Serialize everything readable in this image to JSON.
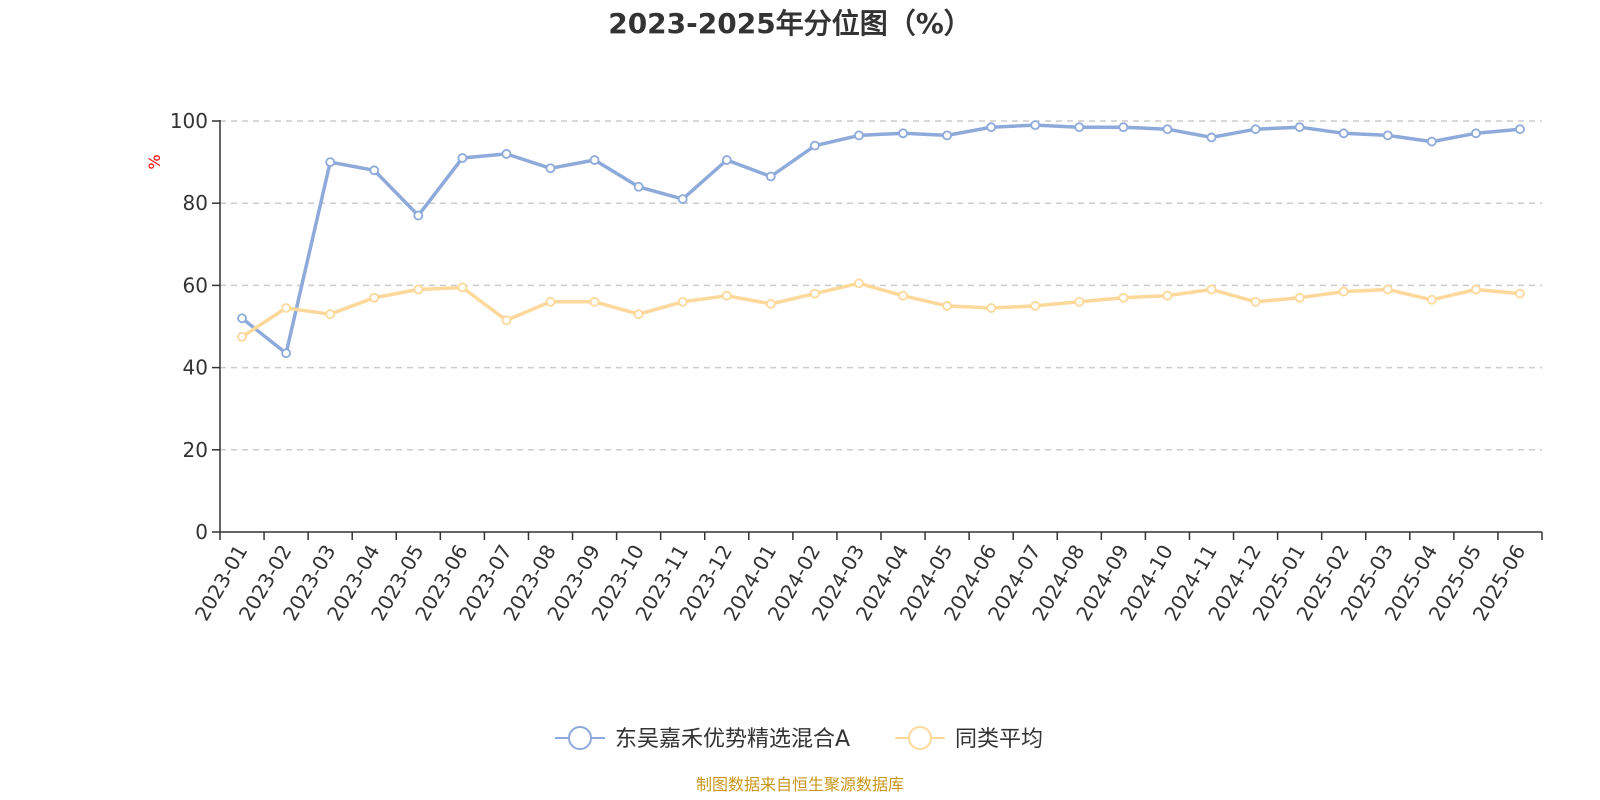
{
  "chart_data": {
    "type": "line",
    "title": "2023-2025年分位图（%）",
    "ylabel": "%",
    "ylim": [
      0,
      100
    ],
    "yticks": [
      0,
      20,
      40,
      60,
      80,
      100
    ],
    "grid": true,
    "legend_position": "bottom",
    "categories": [
      "2023-01",
      "2023-02",
      "2023-03",
      "2023-04",
      "2023-05",
      "2023-06",
      "2023-07",
      "2023-08",
      "2023-09",
      "2023-10",
      "2023-11",
      "2023-12",
      "2024-01",
      "2024-02",
      "2024-03",
      "2024-04",
      "2024-05",
      "2024-06",
      "2024-07",
      "2024-08",
      "2024-09",
      "2024-10",
      "2024-11",
      "2024-12",
      "2025-01",
      "2025-02",
      "2025-03",
      "2025-04",
      "2025-05",
      "2025-06"
    ],
    "series": [
      {
        "name": "东吴嘉禾优势精选混合A",
        "color": "#8eaadb",
        "values": [
          52,
          43.5,
          90,
          88,
          77,
          91,
          92,
          88.5,
          90.5,
          84,
          81,
          90.5,
          86.5,
          94,
          96.5,
          97,
          96.5,
          98.5,
          99,
          98.5,
          98.5,
          98,
          96,
          98,
          98.5,
          97,
          96.5,
          95,
          97,
          98
        ]
      },
      {
        "name": "同类平均",
        "color": "#fcd89a",
        "values": [
          47.5,
          54.5,
          53,
          57,
          59,
          59.5,
          51.5,
          56,
          56,
          53,
          56,
          57.5,
          55.5,
          58,
          60.5,
          57.5,
          55,
          54.5,
          55,
          56,
          57,
          57.5,
          59,
          56,
          57,
          58.5,
          59,
          56.5,
          59,
          58
        ]
      }
    ]
  },
  "source": "制图数据来自恒生聚源数据库"
}
